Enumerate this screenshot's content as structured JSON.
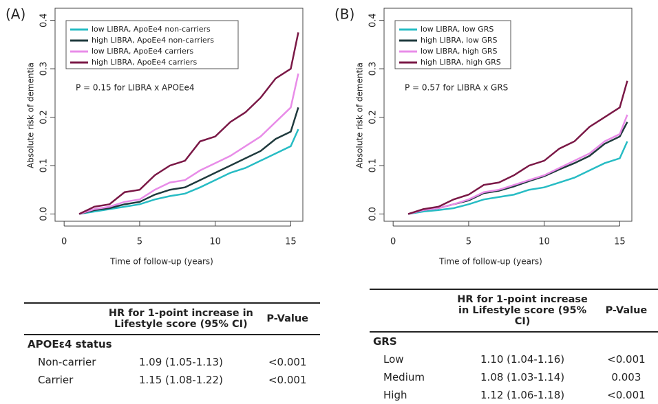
{
  "chart_data": [
    {
      "type": "line",
      "panel_label": "(A)",
      "x_label": "Time of follow-up (years)",
      "y_label": "Absolute risk of dementia",
      "annotation": "P = 0.15 for LIBRA x APOEe4",
      "x": [
        1,
        2,
        3,
        4,
        5,
        6,
        7,
        8,
        9,
        10,
        11,
        12,
        13,
        14,
        15,
        15.5
      ],
      "series": [
        {
          "name": "low LIBRA, ApoEe4 non-carriers",
          "color": "#27bcc4",
          "values": [
            0,
            0.005,
            0.01,
            0.015,
            0.02,
            0.03,
            0.037,
            0.042,
            0.055,
            0.07,
            0.085,
            0.095,
            0.11,
            0.125,
            0.14,
            0.175
          ]
        },
        {
          "name": "high LIBRA, ApoEe4 non-carriers",
          "color": "#1f3a3d",
          "values": [
            0,
            0.008,
            0.012,
            0.02,
            0.025,
            0.04,
            0.05,
            0.055,
            0.07,
            0.085,
            0.1,
            0.115,
            0.13,
            0.155,
            0.17,
            0.22
          ]
        },
        {
          "name": "low LIBRA, ApoEe4 carriers",
          "color": "#e88ce8",
          "values": [
            0,
            0.01,
            0.015,
            0.025,
            0.03,
            0.05,
            0.065,
            0.07,
            0.09,
            0.105,
            0.12,
            0.14,
            0.16,
            0.19,
            0.22,
            0.29
          ]
        },
        {
          "name": "high LIBRA, ApoEe4 carriers",
          "color": "#7a1846",
          "values": [
            0,
            0.015,
            0.02,
            0.045,
            0.05,
            0.08,
            0.1,
            0.11,
            0.15,
            0.16,
            0.19,
            0.21,
            0.24,
            0.28,
            0.3,
            0.375
          ]
        }
      ],
      "xlim": [
        -0.6,
        15.8
      ],
      "xticks": [
        0,
        5,
        10,
        15
      ],
      "ylim": [
        -0.015,
        0.425
      ],
      "yticks": [
        {
          "value": 0,
          "label": "0.0"
        },
        0.1,
        0.2,
        0.3,
        0.4
      ]
    },
    {
      "type": "line",
      "panel_label": "(B)",
      "x_label": "Time of follow-up (years)",
      "y_label": "Absolute risk of dementia",
      "annotation": "P = 0.57 for LIBRA x GRS",
      "x": [
        1,
        2,
        3,
        4,
        5,
        6,
        7,
        8,
        9,
        10,
        11,
        12,
        13,
        14,
        15,
        15.5
      ],
      "series": [
        {
          "name": "low LIBRA, low GRS",
          "color": "#27bcc4",
          "values": [
            0,
            0.005,
            0.008,
            0.012,
            0.02,
            0.03,
            0.035,
            0.04,
            0.05,
            0.055,
            0.065,
            0.075,
            0.09,
            0.105,
            0.115,
            0.15
          ]
        },
        {
          "name": "high LIBRA, low GRS",
          "color": "#1f3a3d",
          "values": [
            0,
            0.008,
            0.012,
            0.02,
            0.028,
            0.043,
            0.048,
            0.057,
            0.068,
            0.078,
            0.092,
            0.105,
            0.12,
            0.145,
            0.16,
            0.19
          ]
        },
        {
          "name": "low LIBRA, high GRS",
          "color": "#e88ce8",
          "values": [
            0,
            0.008,
            0.012,
            0.02,
            0.03,
            0.045,
            0.05,
            0.06,
            0.07,
            0.08,
            0.095,
            0.11,
            0.125,
            0.15,
            0.165,
            0.205
          ]
        },
        {
          "name": "high LIBRA, high GRS",
          "color": "#7a1846",
          "values": [
            0,
            0.01,
            0.015,
            0.03,
            0.04,
            0.06,
            0.065,
            0.08,
            0.1,
            0.11,
            0.135,
            0.15,
            0.18,
            0.2,
            0.22,
            0.275
          ]
        }
      ],
      "xlim": [
        -0.6,
        15.8
      ],
      "xticks": [
        0,
        5,
        10,
        15
      ],
      "ylim": [
        -0.015,
        0.425
      ],
      "yticks": [
        {
          "value": 0,
          "label": "0.0"
        },
        0.1,
        0.2,
        0.3,
        0.4
      ]
    }
  ],
  "tables": [
    {
      "header": [
        "HR for 1-point increase in Lifestyle score (95% CI)",
        "P-Value"
      ],
      "group": "APOEε4 status",
      "rows": [
        [
          "Non-carrier",
          "1.09 (1.05-1.13)",
          "<0.001"
        ],
        [
          "Carrier",
          "1.15 (1.08-1.22)",
          "<0.001"
        ]
      ]
    },
    {
      "header": [
        "HR for 1-point increase in Lifestyle score (95% CI)",
        "P-Value"
      ],
      "group": "GRS",
      "rows": [
        [
          "Low",
          "1.10 (1.04-1.16)",
          "<0.001"
        ],
        [
          "Medium",
          "1.08 (1.03-1.14)",
          "0.003"
        ],
        [
          "High",
          "1.12 (1.06-1.18)",
          "<0.001"
        ]
      ]
    }
  ]
}
